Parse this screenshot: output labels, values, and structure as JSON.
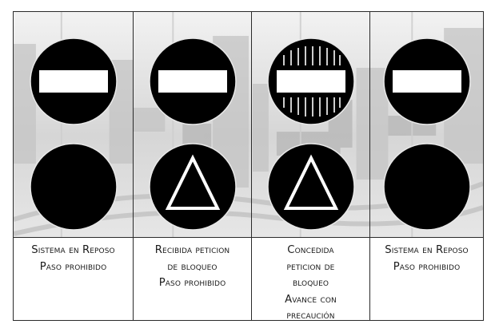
{
  "colors": {
    "signal_disc": "#000000",
    "signal_symbol": "#ffffff",
    "border": "#2a2a2a",
    "background_photo": "#c9c9c9"
  },
  "columns": [
    {
      "top_signal": "no-entry-bar-icon",
      "bottom_signal": "blank-disc-icon",
      "caption": [
        "Sistema en Reposo",
        "Paso prohibido"
      ]
    },
    {
      "top_signal": "no-entry-bar-icon",
      "bottom_signal": "triangle-outline-icon",
      "caption": [
        "Recibida peticion",
        "de bloqueo",
        "Paso prohibido"
      ]
    },
    {
      "top_signal": "no-entry-bar-striped-icon",
      "bottom_signal": "triangle-outline-icon",
      "caption": [
        "Concedida",
        "peticion de",
        "bloqueo",
        "Avance con",
        "precaución"
      ]
    },
    {
      "top_signal": "no-entry-bar-icon",
      "bottom_signal": "blank-disc-icon",
      "caption": [
        "Sistema en Reposo",
        "Paso prohibido"
      ]
    }
  ]
}
